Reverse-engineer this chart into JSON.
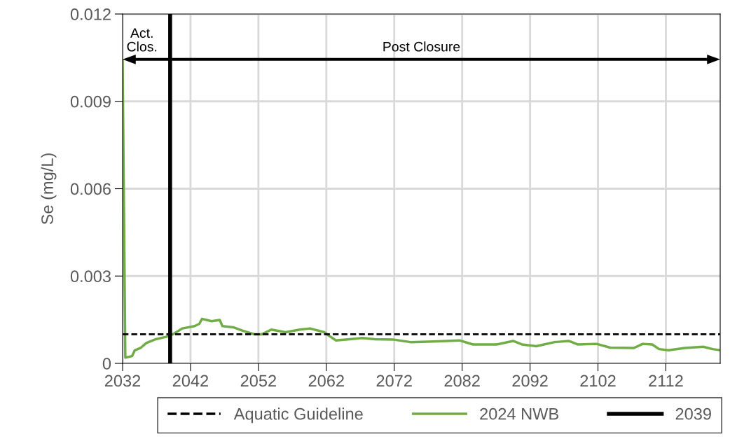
{
  "chart_data": {
    "type": "line",
    "ylabel": "Se (mg/L)",
    "xlim": [
      2032,
      2120
    ],
    "xticks": [
      2032,
      2042,
      2052,
      2062,
      2072,
      2082,
      2092,
      2102,
      2112
    ],
    "ylim": [
      0,
      0.012
    ],
    "yticks": [
      {
        "value": 0,
        "label": "0"
      },
      {
        "value": 0.003,
        "label": "0.003"
      },
      {
        "value": 0.006,
        "label": "0.006"
      },
      {
        "value": 0.009,
        "label": "0.009"
      },
      {
        "value": 0.012,
        "label": "0.012"
      }
    ],
    "grid": true,
    "legend": "bottom",
    "series": [
      {
        "name": "2024 NWB",
        "color": "#70ad47",
        "x": [
          2032,
          2032.4,
          2033.4,
          2033.8,
          2034.7,
          2035.5,
          2036.9,
          2038.4,
          2039.4,
          2040.8,
          2042.6,
          2043.3,
          2043.7,
          2045.1,
          2046.3,
          2046.7,
          2048.3,
          2049.7,
          2051.4,
          2052.5,
          2053.9,
          2056.0,
          2058.1,
          2059.6,
          2061.7,
          2062.4,
          2063.4,
          2067.3,
          2069.1,
          2071.8,
          2074.4,
          2078.5,
          2081.6,
          2083.6,
          2087.1,
          2089.5,
          2090.8,
          2092.9,
          2095.6,
          2097.7,
          2099.0,
          2101.8,
          2103.8,
          2107.3,
          2108.6,
          2110.0,
          2111.0,
          2112.4,
          2114.8,
          2117.5,
          2118.9,
          2119.8
        ],
        "values": [
          0.0104,
          0.0002,
          0.00025,
          0.00045,
          0.00054,
          0.0007,
          0.00083,
          0.00091,
          0.001,
          0.0012,
          0.00128,
          0.00136,
          0.00153,
          0.00145,
          0.00149,
          0.00128,
          0.00124,
          0.00112,
          0.001,
          0.001,
          0.00116,
          0.00107,
          0.00116,
          0.0012,
          0.00107,
          0.00095,
          0.00079,
          0.00087,
          0.00083,
          0.00082,
          0.00073,
          0.00076,
          0.00079,
          0.00065,
          0.00065,
          0.00077,
          0.00065,
          0.00059,
          0.00073,
          0.00077,
          0.00065,
          0.00067,
          0.00054,
          0.00053,
          0.00067,
          0.00065,
          0.00049,
          0.00045,
          0.00053,
          0.00057,
          0.00049,
          0.00046
        ]
      }
    ],
    "ref_lines": [
      {
        "axis": "y",
        "value": 0.001,
        "label": "Aquatic Guideline",
        "color": "#000000",
        "line_style": "dashed"
      },
      {
        "axis": "x",
        "value": 2039,
        "label": "2039",
        "color": "#000000",
        "line_style": "solid"
      }
    ],
    "annotations": [
      "Act.\nClos.",
      "Post Closure"
    ]
  }
}
